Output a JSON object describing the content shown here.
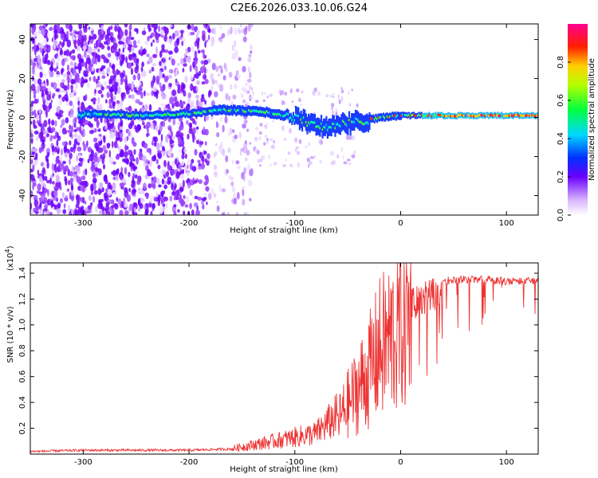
{
  "title": "C2E6.2026.033.10.06.G24",
  "chart_data": [
    {
      "type": "heatmap",
      "title": "C2E6.2026.033.10.06.G24",
      "xlabel": "Height of straight line (km)",
      "ylabel": "Frequency (Hz)",
      "xlim": [
        -350,
        130
      ],
      "ylim": [
        -50,
        48
      ],
      "xticks": [
        -300,
        -200,
        -100,
        0,
        100
      ],
      "yticks": [
        -40,
        -20,
        0,
        20,
        40
      ],
      "ridge": [
        {
          "x": -300,
          "y": 2
        },
        {
          "x": -250,
          "y": 1
        },
        {
          "x": -200,
          "y": 2
        },
        {
          "x": -170,
          "y": 4
        },
        {
          "x": -130,
          "y": 3
        },
        {
          "x": -100,
          "y": 0
        },
        {
          "x": -80,
          "y": -4
        },
        {
          "x": -65,
          "y": -5
        },
        {
          "x": -50,
          "y": -3
        },
        {
          "x": -40,
          "y": -2
        },
        {
          "x": -20,
          "y": 0
        },
        {
          "x": 0,
          "y": 1
        },
        {
          "x": 50,
          "y": 1
        },
        {
          "x": 130,
          "y": 1
        }
      ],
      "colorbar": {
        "label": "Normalized spectral amplitude",
        "ticks": [
          0.0,
          0.2,
          0.4,
          0.6,
          0.8
        ],
        "range": [
          0,
          1
        ]
      }
    },
    {
      "type": "line",
      "xlabel": "Height of straight line (km)",
      "ylabel": "SNR (10 * v/v)",
      "scale_label": "(x10",
      "scale_exponent": "4",
      "scale_suffix": ")",
      "xlim": [
        -350,
        130
      ],
      "ylim": [
        0,
        1.48
      ],
      "xticks": [
        -300,
        -200,
        -100,
        0,
        100
      ],
      "yticks": [
        0.2,
        0.4,
        0.6,
        0.8,
        1.0,
        1.2,
        1.4
      ],
      "color": "#ee3333",
      "series": [
        {
          "name": "SNR",
          "x": [
            -350,
            -300,
            -250,
            -200,
            -160,
            -140,
            -120,
            -100,
            -80,
            -60,
            -50,
            -40,
            -30,
            -25,
            -20,
            -15,
            -10,
            -5,
            0,
            10,
            20,
            30,
            40,
            60,
            80,
            100,
            130
          ],
          "values": [
            0.02,
            0.03,
            0.03,
            0.03,
            0.04,
            0.07,
            0.1,
            0.13,
            0.16,
            0.3,
            0.45,
            0.6,
            0.75,
            0.85,
            0.95,
            1.0,
            1.05,
            1.1,
            1.2,
            1.28,
            1.33,
            1.36,
            1.37,
            1.38,
            1.38,
            1.37,
            1.37
          ]
        }
      ]
    }
  ]
}
